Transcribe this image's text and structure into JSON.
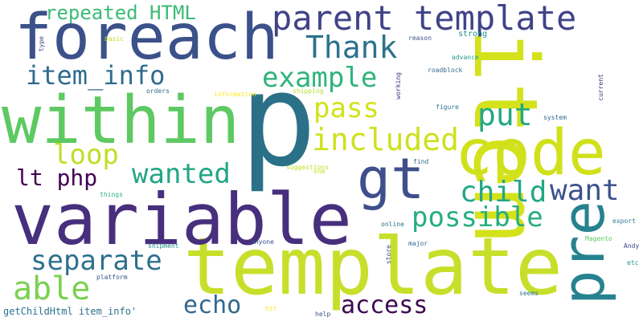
{
  "words": [
    {
      "text": "p",
      "color": "#2a7188"
    },
    {
      "text": "template",
      "color": "#c7df2a"
    },
    {
      "text": "variable",
      "color": "#472f7d"
    },
    {
      "text": "item",
      "color": "#d3e21b"
    },
    {
      "text": "foreach",
      "color": "#3b518a"
    },
    {
      "text": "within",
      "color": "#5ec962"
    },
    {
      "text": "code",
      "color": "#d0e11c"
    },
    {
      "text": "parent template",
      "color": "#404387"
    },
    {
      "text": "pre",
      "color": "#26828e"
    },
    {
      "text": "gt",
      "color": "#3f4f8b"
    },
    {
      "text": "Thank",
      "color": "#2c728e"
    },
    {
      "text": "item_info",
      "color": "#2f6c8e"
    },
    {
      "text": "example",
      "color": "#2fb47c"
    },
    {
      "text": "repeated HTML",
      "color": "#3bbb75"
    },
    {
      "text": "pass",
      "color": "#d2e21b"
    },
    {
      "text": "included",
      "color": "#cde11d"
    },
    {
      "text": "put",
      "color": "#22a884"
    },
    {
      "text": "loop",
      "color": "#bddf26"
    },
    {
      "text": "lt php",
      "color": "#440154"
    },
    {
      "text": "wanted",
      "color": "#21a685"
    },
    {
      "text": "child",
      "color": "#22a785"
    },
    {
      "text": "want",
      "color": "#3b528b"
    },
    {
      "text": "possible",
      "color": "#27ad81"
    },
    {
      "text": "separate",
      "color": "#2d708e"
    },
    {
      "text": "able",
      "color": "#7ad151"
    },
    {
      "text": "echo",
      "color": "#31688e"
    },
    {
      "text": "access",
      "color": "#3e0751"
    },
    {
      "text": "getChildHtml item_info'",
      "color": "#2c728e"
    },
    {
      "text": "type",
      "color": "#414487"
    },
    {
      "text": "basic",
      "color": "#bddf26"
    },
    {
      "text": "orders",
      "color": "#31688e"
    },
    {
      "text": "information",
      "color": "#fde725"
    },
    {
      "text": "shipping",
      "color": "#b5de2b"
    },
    {
      "text": "reason",
      "color": "#3b528b"
    },
    {
      "text": "strong",
      "color": "#21918c"
    },
    {
      "text": "advance",
      "color": "#1f9e89"
    },
    {
      "text": "roadblock",
      "color": "#31688e"
    },
    {
      "text": "working",
      "color": "#443983"
    },
    {
      "text": "current",
      "color": "#46327e"
    },
    {
      "text": "figure",
      "color": "#2a788e"
    },
    {
      "text": "system",
      "color": "#31688e"
    },
    {
      "text": "find",
      "color": "#31688e"
    },
    {
      "text": "suggestions",
      "color": "#c2df23"
    },
    {
      "text": "one",
      "color": "#c8e020"
    },
    {
      "text": "things",
      "color": "#2db27d"
    },
    {
      "text": "online",
      "color": "#2c728e"
    },
    {
      "text": "export",
      "color": "#2a788e"
    },
    {
      "text": "Magento",
      "color": "#5ec962"
    },
    {
      "text": "Andy",
      "color": "#414487"
    },
    {
      "text": "shipment",
      "color": "#21918c"
    },
    {
      "text": "anyone",
      "color": "#3b528b"
    },
    {
      "text": "major",
      "color": "#31688e"
    },
    {
      "text": "store",
      "color": "#3b528b"
    },
    {
      "text": "etc",
      "color": "#21918c"
    },
    {
      "text": "platform",
      "color": "#3b528b"
    },
    {
      "text": "seems",
      "color": "#2c728e"
    },
    {
      "text": "hit",
      "color": "#fde725"
    },
    {
      "text": "help",
      "color": "#3b528b"
    }
  ]
}
